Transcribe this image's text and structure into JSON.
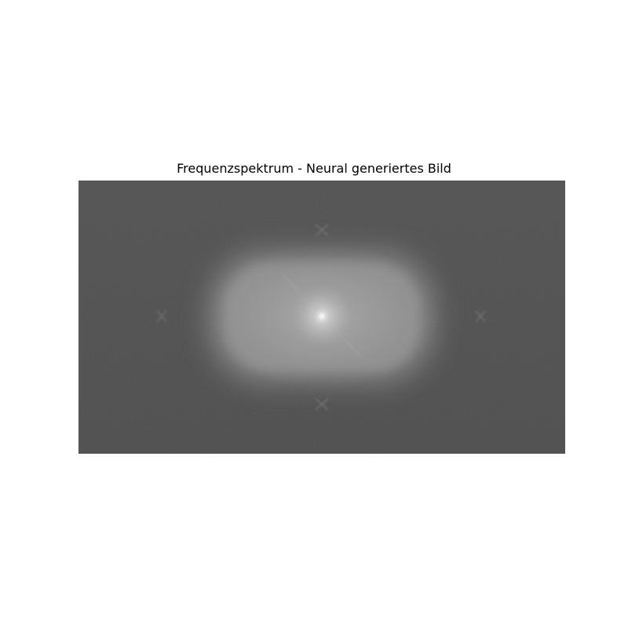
{
  "figure": {
    "title": "Frequenzspektrum - Neural generiertes Bild",
    "colors": {
      "background": "#505050",
      "glow": "#b4b4b4",
      "center": "#f2f2f2",
      "axis_lines": "#9a9a9a"
    }
  }
}
